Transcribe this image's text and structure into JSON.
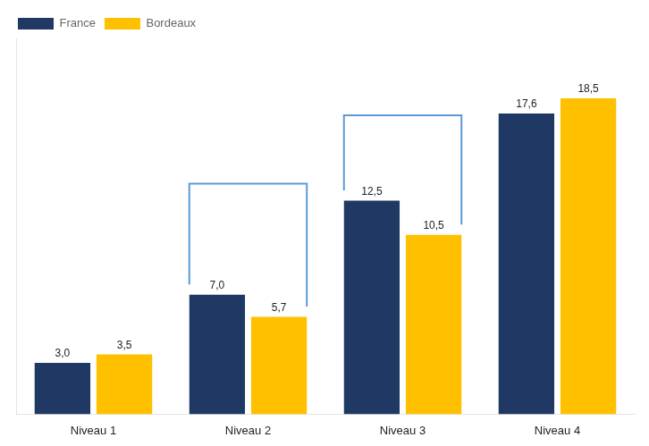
{
  "chart_data": {
    "type": "bar",
    "categories": [
      "Niveau 1",
      "Niveau 2",
      "Niveau 3",
      "Niveau 4"
    ],
    "series": [
      {
        "name": "France",
        "color": "#1F3864",
        "values": [
          3.0,
          7.0,
          12.5,
          17.6
        ],
        "value_labels": [
          "3,0",
          "7,0",
          "12,5",
          "17,6"
        ]
      },
      {
        "name": "Bordeaux",
        "color": "#FFC000",
        "values": [
          3.5,
          5.7,
          10.5,
          18.5
        ],
        "value_labels": [
          "3,5",
          "5,7",
          "10,5",
          "18,5"
        ]
      }
    ],
    "ylim": [
      0,
      22
    ],
    "grid": false,
    "legend": "upper left",
    "data_labels": true,
    "tick_labels": "x",
    "brackets": [
      {
        "category": "Niveau 2",
        "color": "#5B9BD5",
        "top": 13.5,
        "left_bottom": 7.6,
        "right_bottom": 6.3
      },
      {
        "category": "Niveau 3",
        "color": "#5B9BD5",
        "top": 17.5,
        "left_bottom": 13.1,
        "right_bottom": 11.1
      }
    ]
  }
}
